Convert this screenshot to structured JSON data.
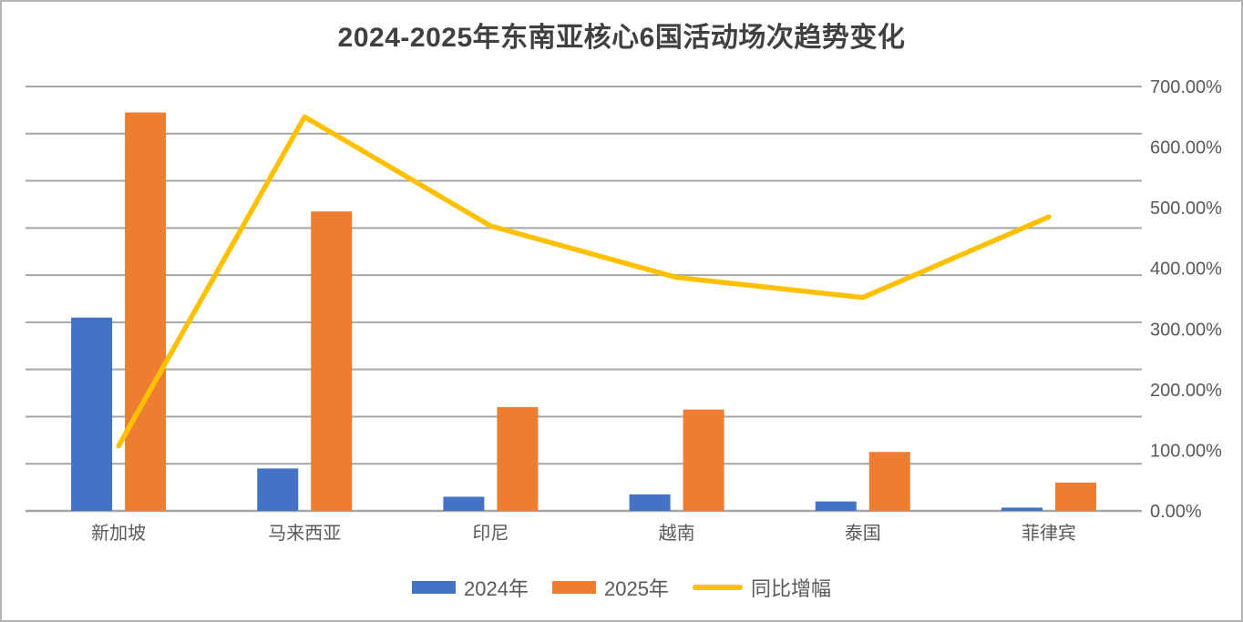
{
  "title": "2024-2025年东南亚核心6国活动场次趋势变化",
  "chart_data": {
    "type": "combo-bar-line",
    "title": "2024-2025年东南亚核心6国活动场次趋势变化",
    "categories": [
      "新加坡",
      "马来西亚",
      "印尼",
      "越南",
      "泰国",
      "菲律宾"
    ],
    "series": [
      {
        "name": "2024年",
        "type": "bar",
        "axis": "left",
        "color": "#4472C4",
        "values": [
          41,
          9,
          3,
          3.5,
          2,
          0.7
        ]
      },
      {
        "name": "2025年",
        "type": "bar",
        "axis": "left",
        "color": "#ED7D31",
        "values": [
          84.5,
          63.5,
          22,
          21.5,
          12.5,
          6
        ]
      },
      {
        "name": "同比增幅",
        "type": "line",
        "axis": "right",
        "color": "#FFC000",
        "values_pct": [
          107,
          650,
          470,
          385,
          352,
          485
        ]
      }
    ],
    "right_axis": {
      "min": 0,
      "max": 700,
      "step": 100,
      "format": "percent",
      "tick_labels": [
        "0.00%",
        "100.00%",
        "200.00%",
        "300.00%",
        "400.00%",
        "500.00%",
        "600.00%",
        "700.00%"
      ]
    },
    "left_axis": {
      "hidden": true,
      "min": 0,
      "max": 90,
      "gridline_intervals": 9
    },
    "grid": true,
    "legend_position": "bottom",
    "xlabel": "",
    "ylabel": ""
  },
  "legend": {
    "items": [
      {
        "label": "2024年",
        "color": "#4472C4",
        "marker": "rect"
      },
      {
        "label": "2025年",
        "color": "#ED7D31",
        "marker": "rect"
      },
      {
        "label": "同比增幅",
        "color": "#FFC000",
        "marker": "line"
      }
    ]
  },
  "colors": {
    "bar_2024": "#4472C4",
    "bar_2025": "#ED7D31",
    "growth_line": "#FFC000",
    "title_text": "#404040",
    "axis_text": "#595959",
    "gridline": "#a6a6a6",
    "border": "#b5b5b5",
    "background": "#ffffff"
  }
}
